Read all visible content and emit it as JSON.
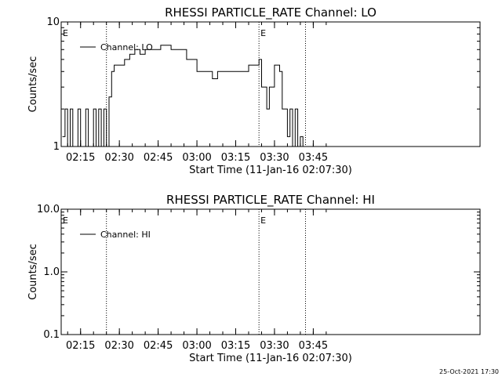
{
  "chart_data": [
    {
      "type": "line",
      "title": "RHESSI PARTICLE_RATE Channel: LO",
      "xlabel": "Start Time (11-Jan-16 02:07:30)",
      "ylabel": "Counts/sec",
      "yscale": "log",
      "ylim": [
        1,
        10
      ],
      "y_ticks": [
        "1",
        "10"
      ],
      "xlim_minutes_from_start": [
        0,
        162
      ],
      "x_ticks": [
        "02:15",
        "02:30",
        "02:45",
        "03:00",
        "03:15",
        "03:30",
        "03:45"
      ],
      "legend": {
        "position": "top-left",
        "entries": [
          "Channel: LO"
        ]
      },
      "eclipse_markers": [
        {
          "time": "02:25",
          "label": ""
        },
        {
          "time": "03:24",
          "label": "E"
        },
        {
          "time": "03:42",
          "label": ""
        }
      ],
      "eclipse_start_label": "E",
      "series": [
        {
          "name": "Channel: LO",
          "x": [
            "02:08",
            "02:09",
            "02:10",
            "02:11",
            "02:12",
            "02:13",
            "02:14",
            "02:15",
            "02:16",
            "02:17",
            "02:18",
            "02:19",
            "02:20",
            "02:21",
            "02:22",
            "02:23",
            "02:24",
            "02:25",
            "02:26",
            "02:27",
            "02:28",
            "02:30",
            "02:32",
            "02:34",
            "02:36",
            "02:38",
            "02:40",
            "02:42",
            "02:44",
            "02:46",
            "02:48",
            "02:50",
            "02:52",
            "02:54",
            "02:56",
            "02:58",
            "03:00",
            "03:02",
            "03:04",
            "03:06",
            "03:08",
            "03:10",
            "03:12",
            "03:14",
            "03:16",
            "03:18",
            "03:20",
            "03:22",
            "03:24",
            "03:25",
            "03:26",
            "03:27",
            "03:28",
            "03:30",
            "03:32",
            "03:33",
            "03:34",
            "03:35",
            "03:36",
            "03:37",
            "03:38",
            "03:39",
            "03:40",
            "03:41",
            "03:42"
          ],
          "y": [
            1.2,
            2,
            1,
            2,
            1,
            1,
            2,
            1,
            1,
            2,
            1,
            1,
            2,
            1,
            2,
            1,
            2,
            1,
            2.5,
            4,
            4.5,
            4.5,
            5,
            5.5,
            6,
            5.5,
            6,
            6,
            6,
            6.5,
            6.5,
            6,
            6,
            6,
            5,
            5,
            4,
            4,
            4,
            3.5,
            4,
            4,
            4,
            4,
            4,
            4,
            4.5,
            4.5,
            5,
            3,
            3,
            2,
            3,
            4.5,
            4,
            2,
            2,
            1.2,
            2,
            1,
            2,
            1,
            1.2,
            1,
            1
          ]
        }
      ]
    },
    {
      "type": "line",
      "title": "RHESSI PARTICLE_RATE Channel: HI",
      "xlabel": "Start Time (11-Jan-16 02:07:30)",
      "ylabel": "Counts/sec",
      "yscale": "log",
      "ylim": [
        0.1,
        10
      ],
      "y_ticks": [
        "0.1",
        "1.0",
        "10.0"
      ],
      "xlim_minutes_from_start": [
        0,
        162
      ],
      "x_ticks": [
        "02:15",
        "02:30",
        "02:45",
        "03:00",
        "03:15",
        "03:30",
        "03:45"
      ],
      "legend": {
        "position": "top-left",
        "entries": [
          "Channel: HI"
        ]
      },
      "eclipse_markers": [
        {
          "time": "02:25",
          "label": ""
        },
        {
          "time": "03:24",
          "label": "E"
        },
        {
          "time": "03:42",
          "label": ""
        }
      ],
      "eclipse_start_label": "E",
      "series": [
        {
          "name": "Channel: HI",
          "x": [],
          "y": []
        }
      ]
    }
  ],
  "footer": {
    "timestamp": "25-Oct-2021 17:30"
  }
}
